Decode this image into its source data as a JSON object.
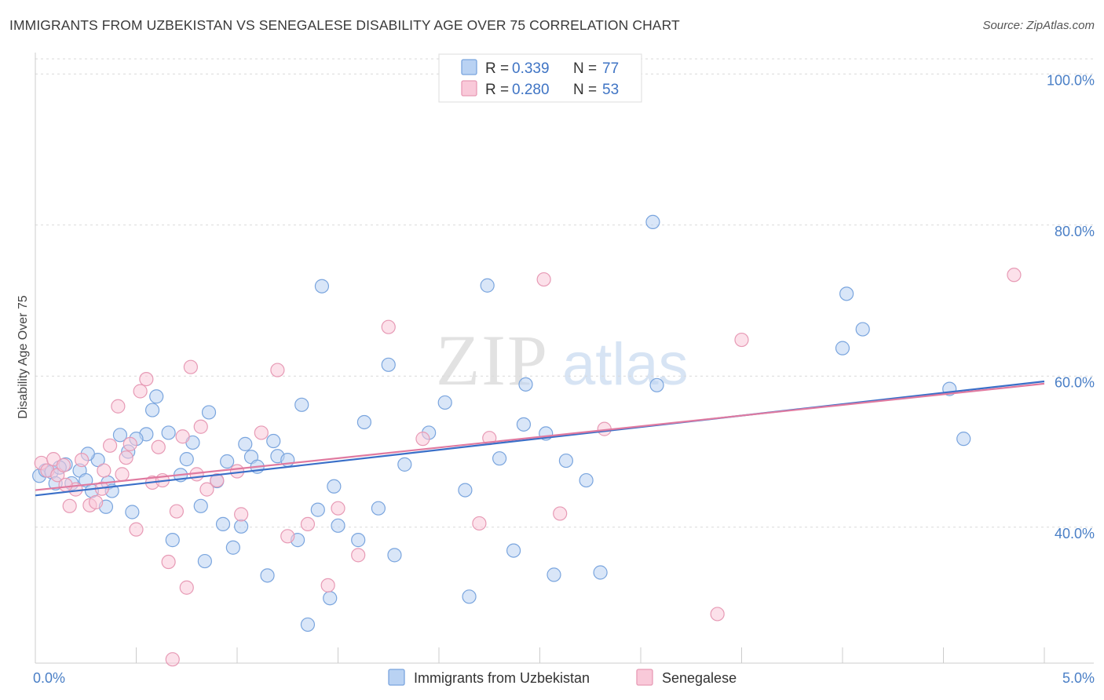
{
  "title": "IMMIGRANTS FROM UZBEKISTAN VS SENEGALESE DISABILITY AGE OVER 75 CORRELATION CHART",
  "source": "Source: ZipAtlas.com",
  "watermark": {
    "zip": "ZIP",
    "atlas": "atlas"
  },
  "legend_top": [
    {
      "r_label": "R =",
      "r_value": "0.339",
      "n_label": "N =",
      "n_value": "77",
      "fill": "#b9d2f3",
      "stroke": "#7aa5de"
    },
    {
      "r_label": "R =",
      "r_value": "0.280",
      "n_label": "N =",
      "n_value": "53",
      "fill": "#f9c9d9",
      "stroke": "#e79ab5"
    }
  ],
  "chart_data": {
    "type": "scatter",
    "title": "IMMIGRANTS FROM UZBEKISTAN VS SENEGALESE DISABILITY AGE OVER 75 CORRELATION CHART",
    "xlabel": "",
    "ylabel": "Disability Age Over 75",
    "xlim": [
      0,
      5
    ],
    "ylim": [
      22,
      102
    ],
    "x_tick_labels": [
      {
        "value": 0,
        "label": "0.0%"
      },
      {
        "value": 5,
        "label": "5.0%"
      }
    ],
    "y_tick_labels": [
      {
        "value": 40,
        "label": "40.0%"
      },
      {
        "value": 60,
        "label": "60.0%"
      },
      {
        "value": 80,
        "label": "80.0%"
      },
      {
        "value": 100,
        "label": "100.0%"
      }
    ],
    "grid": true,
    "legend_position": "top-center",
    "series": [
      {
        "name": "Immigrants from Uzbekistan",
        "color": "#7aa5de",
        "fill": "#b9d2f3",
        "trend_color": "#3a6fc8",
        "trend": [
          [
            0,
            44.2
          ],
          [
            5,
            59.3
          ]
        ],
        "points": [
          [
            0.02,
            46.8
          ],
          [
            0.05,
            47.5
          ],
          [
            0.08,
            47.3
          ],
          [
            0.1,
            45.8
          ],
          [
            0.15,
            48.3
          ],
          [
            0.18,
            45.8
          ],
          [
            0.22,
            47.5
          ],
          [
            0.25,
            46.2
          ],
          [
            0.28,
            44.8
          ],
          [
            0.31,
            48.9
          ],
          [
            0.35,
            42.7
          ],
          [
            0.36,
            45.9
          ],
          [
            0.42,
            52.2
          ],
          [
            0.46,
            50.0
          ],
          [
            0.48,
            42.0
          ],
          [
            0.55,
            52.3
          ],
          [
            0.58,
            55.5
          ],
          [
            0.6,
            57.3
          ],
          [
            0.66,
            52.5
          ],
          [
            0.68,
            38.3
          ],
          [
            0.72,
            46.9
          ],
          [
            0.75,
            49.0
          ],
          [
            0.78,
            51.2
          ],
          [
            0.82,
            42.8
          ],
          [
            0.84,
            35.5
          ],
          [
            0.86,
            55.2
          ],
          [
            0.9,
            46.1
          ],
          [
            0.93,
            40.4
          ],
          [
            0.95,
            48.7
          ],
          [
            0.98,
            37.3
          ],
          [
            1.02,
            40.1
          ],
          [
            1.04,
            51.0
          ],
          [
            1.07,
            49.3
          ],
          [
            1.1,
            48.0
          ],
          [
            1.15,
            33.6
          ],
          [
            1.18,
            51.4
          ],
          [
            1.2,
            49.4
          ],
          [
            1.25,
            48.9
          ],
          [
            1.3,
            38.3
          ],
          [
            1.32,
            56.2
          ],
          [
            1.35,
            27.1
          ],
          [
            1.4,
            42.3
          ],
          [
            1.42,
            71.9
          ],
          [
            1.46,
            30.6
          ],
          [
            1.48,
            45.4
          ],
          [
            1.5,
            40.2
          ],
          [
            1.6,
            38.3
          ],
          [
            1.63,
            53.9
          ],
          [
            1.7,
            42.5
          ],
          [
            1.75,
            61.5
          ],
          [
            1.78,
            36.3
          ],
          [
            1.83,
            48.3
          ],
          [
            1.95,
            52.5
          ],
          [
            2.03,
            56.5
          ],
          [
            2.13,
            44.9
          ],
          [
            2.15,
            30.8
          ],
          [
            2.24,
            72.0
          ],
          [
            2.3,
            49.1
          ],
          [
            2.37,
            36.9
          ],
          [
            2.42,
            53.6
          ],
          [
            2.43,
            58.9
          ],
          [
            2.53,
            52.4
          ],
          [
            2.57,
            33.7
          ],
          [
            2.63,
            48.8
          ],
          [
            2.73,
            46.2
          ],
          [
            2.8,
            34.0
          ],
          [
            3.06,
            80.4
          ],
          [
            3.08,
            58.8
          ],
          [
            4.0,
            63.7
          ],
          [
            4.02,
            70.9
          ],
          [
            4.1,
            66.2
          ],
          [
            4.53,
            58.3
          ],
          [
            4.6,
            51.7
          ],
          [
            0.12,
            47.9
          ],
          [
            0.38,
            44.8
          ],
          [
            0.26,
            49.7
          ],
          [
            0.5,
            51.7
          ]
        ]
      },
      {
        "name": "Senegalese",
        "color": "#e79ab5",
        "fill": "#f9c9d9",
        "trend_color": "#e07aa0",
        "trend": [
          [
            0,
            44.9
          ],
          [
            5,
            59.0
          ]
        ],
        "points": [
          [
            0.03,
            48.5
          ],
          [
            0.06,
            47.5
          ],
          [
            0.09,
            49.0
          ],
          [
            0.11,
            46.9
          ],
          [
            0.14,
            48.2
          ],
          [
            0.17,
            42.8
          ],
          [
            0.2,
            45.0
          ],
          [
            0.23,
            48.9
          ],
          [
            0.27,
            42.9
          ],
          [
            0.3,
            43.3
          ],
          [
            0.34,
            47.5
          ],
          [
            0.37,
            50.8
          ],
          [
            0.41,
            56.0
          ],
          [
            0.43,
            47.0
          ],
          [
            0.47,
            51.0
          ],
          [
            0.5,
            39.7
          ],
          [
            0.52,
            58.0
          ],
          [
            0.55,
            59.6
          ],
          [
            0.58,
            45.9
          ],
          [
            0.61,
            50.6
          ],
          [
            0.63,
            46.2
          ],
          [
            0.66,
            35.4
          ],
          [
            0.68,
            22.5
          ],
          [
            0.7,
            42.1
          ],
          [
            0.73,
            52.0
          ],
          [
            0.75,
            32.0
          ],
          [
            0.77,
            61.2
          ],
          [
            0.8,
            47.0
          ],
          [
            0.82,
            53.3
          ],
          [
            0.85,
            45.0
          ],
          [
            0.9,
            46.2
          ],
          [
            1.0,
            47.4
          ],
          [
            1.02,
            41.7
          ],
          [
            1.12,
            52.5
          ],
          [
            1.2,
            60.8
          ],
          [
            1.25,
            38.8
          ],
          [
            1.35,
            40.4
          ],
          [
            1.45,
            32.3
          ],
          [
            1.5,
            42.5
          ],
          [
            1.6,
            36.3
          ],
          [
            1.75,
            66.5
          ],
          [
            1.92,
            51.7
          ],
          [
            2.2,
            40.5
          ],
          [
            2.25,
            51.8
          ],
          [
            2.52,
            72.8
          ],
          [
            2.6,
            41.8
          ],
          [
            2.82,
            53.0
          ],
          [
            3.38,
            28.5
          ],
          [
            3.5,
            64.8
          ],
          [
            4.85,
            73.4
          ],
          [
            0.15,
            45.6
          ],
          [
            0.33,
            45.1
          ],
          [
            0.45,
            49.2
          ]
        ]
      }
    ]
  }
}
